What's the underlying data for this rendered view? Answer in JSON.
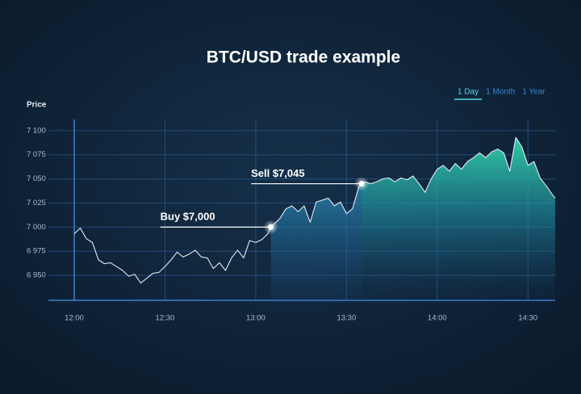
{
  "chart_data": {
    "type": "line",
    "title": "BTC/USD trade example",
    "y_label": "Price",
    "range_options": [
      "1 Day",
      "1 Month",
      "1 Year"
    ],
    "active_range": 0,
    "x": [
      "12:00",
      "12:02",
      "12:04",
      "12:06",
      "12:08",
      "12:10",
      "12:12",
      "12:14",
      "12:16",
      "12:18",
      "12:20",
      "12:22",
      "12:24",
      "12:26",
      "12:28",
      "12:30",
      "12:32",
      "12:34",
      "12:36",
      "12:38",
      "12:40",
      "12:42",
      "12:44",
      "12:46",
      "12:48",
      "12:50",
      "12:52",
      "12:54",
      "12:56",
      "12:58",
      "13:00",
      "13:02",
      "13:04",
      "13:05",
      "13:06",
      "13:08",
      "13:10",
      "13:12",
      "13:14",
      "13:16",
      "13:18",
      "13:20",
      "13:22",
      "13:24",
      "13:26",
      "13:28",
      "13:30",
      "13:32",
      "13:34",
      "13:35",
      "13:36",
      "13:38",
      "13:40",
      "13:42",
      "13:44",
      "13:46",
      "13:48",
      "13:50",
      "13:52",
      "13:54",
      "13:56",
      "13:58",
      "14:00",
      "14:02",
      "14:04",
      "14:06",
      "14:08",
      "14:10",
      "14:12",
      "14:14",
      "14:16",
      "14:18",
      "14:20",
      "14:22",
      "14:24",
      "14:26",
      "14:28",
      "14:30",
      "14:32",
      "14:34",
      "14:36",
      "14:38",
      "14:39"
    ],
    "series": [
      {
        "name": "BTC/USD",
        "color": "#e3ebf3",
        "values": [
          6993,
          6999,
          6988,
          6984,
          6966,
          6962,
          6963,
          6959,
          6955,
          6949,
          6951,
          6942,
          6947,
          6952,
          6953,
          6959,
          6966,
          6974,
          6969,
          6972,
          6976,
          6969,
          6968,
          6957,
          6963,
          6955,
          6968,
          6976,
          6968,
          6986,
          6984,
          6987,
          6993,
          7000,
          7003,
          7009,
          7019,
          7022,
          7016,
          7022,
          7005,
          7026,
          7028,
          7030,
          7022,
          7026,
          7014,
          7019,
          7041,
          7045,
          7047,
          7045,
          7047,
          7050,
          7051,
          7047,
          7051,
          7049,
          7053,
          7045,
          7036,
          7050,
          7060,
          7064,
          7058,
          7066,
          7060,
          7068,
          7072,
          7077,
          7072,
          7078,
          7081,
          7077,
          7058,
          7093,
          7083,
          7064,
          7068,
          7051,
          7043,
          7034,
          7030
        ]
      }
    ],
    "annotations": [
      {
        "label": "Buy $7,000",
        "x": "13:05",
        "value": 7000
      },
      {
        "label": "Sell $7,045",
        "x": "13:35",
        "value": 7045
      }
    ],
    "xlim": [
      "12:00",
      "14:39"
    ],
    "xticks": [
      "12:00",
      "12:30",
      "13:00",
      "13:30",
      "14:00",
      "14:30"
    ],
    "ylim": [
      6924,
      7120
    ],
    "yticks": [
      {
        "value": 6950,
        "label": "6 950"
      },
      {
        "value": 6975,
        "label": "6 975"
      },
      {
        "value": 7000,
        "label": "7 000"
      },
      {
        "value": 7025,
        "label": "7 025"
      },
      {
        "value": 7050,
        "label": "7 050"
      },
      {
        "value": 7075,
        "label": "7 075"
      },
      {
        "value": 7100,
        "label": "7 100"
      }
    ],
    "grid": true
  }
}
